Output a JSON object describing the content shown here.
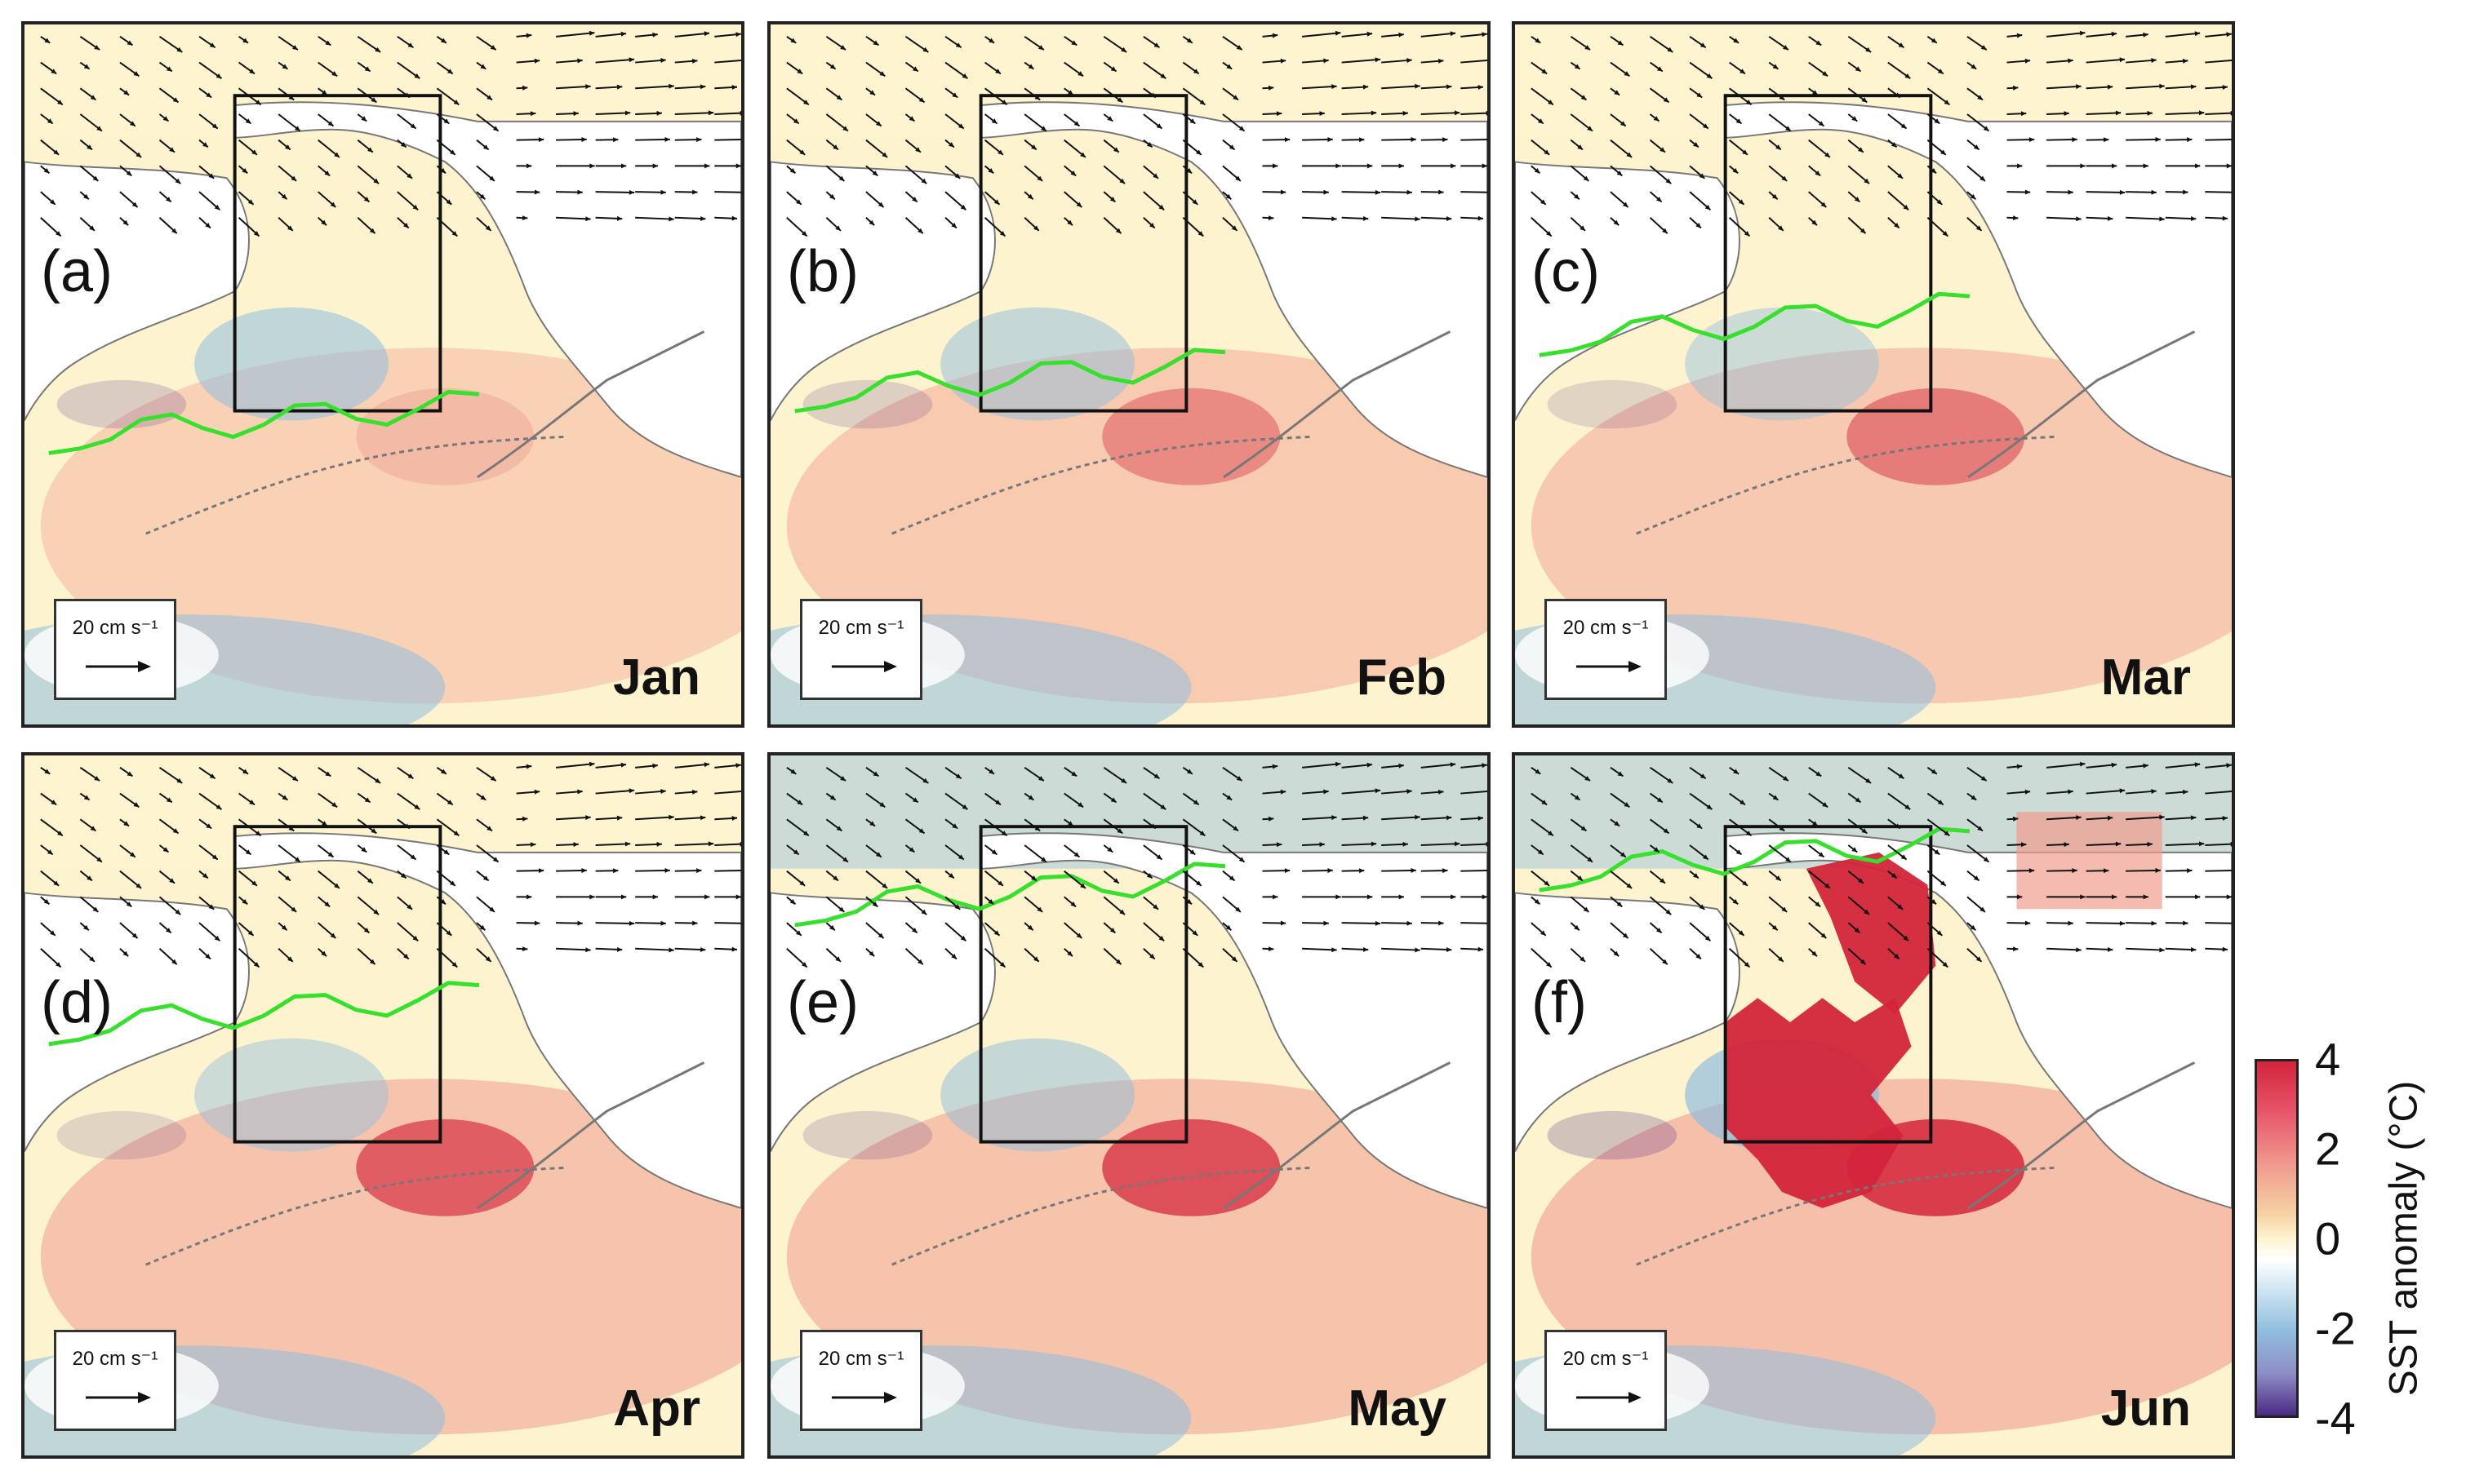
{
  "panels": [
    {
      "label": "(a)",
      "month": "Jan",
      "scale": "20 cm s⁻¹"
    },
    {
      "label": "(b)",
      "month": "Feb",
      "scale": "20 cm s⁻¹"
    },
    {
      "label": "(c)",
      "month": "Mar",
      "scale": "20 cm s⁻¹"
    },
    {
      "label": "(d)",
      "month": "Apr",
      "scale": "20 cm s⁻¹"
    },
    {
      "label": "(e)",
      "month": "May",
      "scale": "20 cm s⁻¹"
    },
    {
      "label": "(f)",
      "month": "Jun",
      "scale": "20 cm s⁻¹"
    }
  ],
  "colorbar": {
    "title": "SST anomaly (°C)",
    "ticks": [
      "4",
      "2",
      "0",
      "-2",
      "-4"
    ],
    "tick_values": [
      4,
      2,
      0,
      -2,
      -4
    ],
    "range": [
      -4,
      4
    ],
    "colors": {
      "warm_strong": "#d3243a",
      "warm": "#f19d8f",
      "neutral_warm": "#fdf3cf",
      "neutral": "#ffffff",
      "cool": "#90bede",
      "cool_strong": "#4a2a85"
    }
  },
  "overlay_colors": {
    "ice_edge": "#37e02d",
    "vectors": "#111111",
    "coastline": "#777777",
    "box": "#111111"
  },
  "warm_anomaly_intensity": [
    0.15,
    0.45,
    0.55,
    0.75,
    0.85,
    1.0
  ],
  "cold_anomaly_intensity": [
    0.55,
    0.5,
    0.45,
    0.45,
    0.5,
    0.7
  ]
}
